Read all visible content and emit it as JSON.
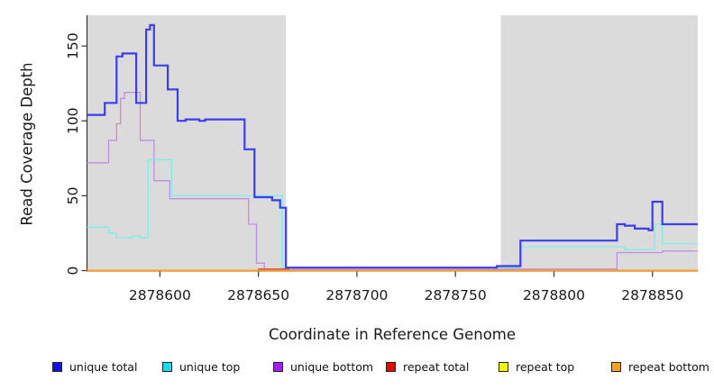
{
  "chart_data": {
    "type": "line",
    "subtype": "step",
    "title": "",
    "xlabel": "Coordinate in Reference Genome",
    "ylabel": "Read Coverage Depth",
    "xlim": [
      2878563,
      2878873
    ],
    "ylim": [
      0,
      170.5
    ],
    "x_ticks": [
      2878600,
      2878650,
      2878700,
      2878750,
      2878800,
      2878850
    ],
    "y_ticks": [
      0,
      50,
      100,
      150
    ],
    "grid": false,
    "legend_position": "bottom",
    "shade_color": "#dbdbdb",
    "axis_color": "#333333",
    "shaded_regions": [
      {
        "x0": 2878563,
        "x1": 2878664
      },
      {
        "x0": 2878773,
        "x1": 2878873
      }
    ],
    "z_order": [
      4,
      2,
      3,
      1,
      0,
      5
    ],
    "series": [
      {
        "name": "unique total",
        "legend_color": "#1010f0",
        "line_color": "#3d3df0",
        "width": 2.2,
        "points": [
          [
            2878563,
            104
          ],
          [
            2878572,
            112
          ],
          [
            2878578,
            143
          ],
          [
            2878581,
            145
          ],
          [
            2878588,
            112
          ],
          [
            2878593,
            161
          ],
          [
            2878595,
            164
          ],
          [
            2878597,
            137
          ],
          [
            2878604,
            121
          ],
          [
            2878609,
            100
          ],
          [
            2878613,
            101
          ],
          [
            2878620,
            100
          ],
          [
            2878623,
            101
          ],
          [
            2878643,
            81
          ],
          [
            2878648,
            49
          ],
          [
            2878657,
            47
          ],
          [
            2878661,
            42
          ],
          [
            2878664,
            2
          ],
          [
            2878771,
            3
          ],
          [
            2878783,
            20
          ],
          [
            2878832,
            31
          ],
          [
            2878836,
            30
          ],
          [
            2878841,
            28
          ],
          [
            2878848,
            27
          ],
          [
            2878850,
            46
          ],
          [
            2878855,
            31
          ]
        ]
      },
      {
        "name": "unique top",
        "legend_color": "#00e5ee",
        "line_color": "#7dedec",
        "width": 1.3,
        "points": [
          [
            2878563,
            29
          ],
          [
            2878574,
            25
          ],
          [
            2878578,
            22
          ],
          [
            2878586,
            23
          ],
          [
            2878590,
            22
          ],
          [
            2878594,
            74
          ],
          [
            2878606,
            50
          ],
          [
            2878662,
            2
          ],
          [
            2878666,
            0
          ],
          [
            2878768,
            2
          ],
          [
            2878783,
            16
          ],
          [
            2878836,
            14
          ],
          [
            2878851,
            31
          ],
          [
            2878855,
            18
          ]
        ]
      },
      {
        "name": "unique bottom",
        "legend_color": "#a020f0",
        "line_color": "#c18ce0",
        "width": 1.3,
        "points": [
          [
            2878563,
            72
          ],
          [
            2878574,
            87
          ],
          [
            2878578,
            98
          ],
          [
            2878580,
            115
          ],
          [
            2878582,
            119
          ],
          [
            2878590,
            87
          ],
          [
            2878597,
            60
          ],
          [
            2878605,
            48
          ],
          [
            2878645,
            31
          ],
          [
            2878649,
            5
          ],
          [
            2878653,
            1
          ],
          [
            2878832,
            12
          ],
          [
            2878855,
            13
          ]
        ]
      },
      {
        "name": "repeat total",
        "legend_color": "#f00000",
        "line_color": "#e04a4a",
        "width": 1.3,
        "points": [
          [
            2878563,
            0
          ],
          [
            2878650,
            1
          ],
          [
            2878666,
            0
          ]
        ]
      },
      {
        "name": "repeat top",
        "legend_color": "#f5f500",
        "line_color": "#f0f000",
        "width": 1.3,
        "points": [
          [
            2878563,
            0
          ]
        ]
      },
      {
        "name": "repeat bottom",
        "legend_color": "#ffa019",
        "line_color": "#ff9e1b",
        "width": 2,
        "points": [
          [
            2878563,
            0
          ]
        ]
      }
    ]
  }
}
